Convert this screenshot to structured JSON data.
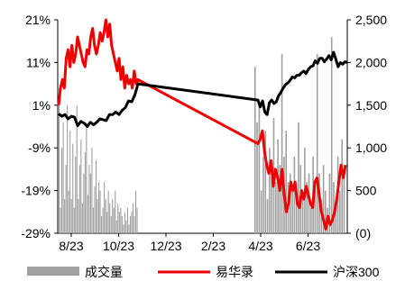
{
  "chart_data": {
    "type": "bar+line",
    "title": "",
    "x_ticks": [
      "8/23",
      "10/23",
      "12/23",
      "2/23",
      "4/23",
      "6/23"
    ],
    "left_axis": {
      "ticks": [
        "21%",
        "11%",
        "1%",
        "-9%",
        "-19%",
        "-29%"
      ],
      "range": [
        -29,
        21
      ],
      "unit": "%"
    },
    "right_axis": {
      "ticks": [
        "2,500",
        "2,000",
        "1,500",
        "1,000",
        "500",
        "(0)"
      ],
      "range": [
        0,
        2500
      ]
    },
    "legend_position": "bottom",
    "series": [
      {
        "name": "成交量",
        "kind": "bar",
        "axis": "right",
        "color": "#a0a0a0",
        "values": [
          1700,
          300,
          1000,
          1300,
          400,
          800,
          1500,
          500,
          1200,
          400,
          1050,
          300,
          900,
          1500,
          400,
          800,
          1100,
          350,
          700,
          950,
          1300,
          450,
          800,
          700,
          1000,
          300,
          550,
          850,
          400,
          600,
          500,
          200,
          300,
          600,
          400,
          250,
          500,
          350,
          200,
          400,
          300,
          500,
          150,
          350,
          250,
          300,
          200,
          100,
          250,
          150,
          300,
          100,
          200,
          250,
          350,
          200,
          500,
          300,
          1950,
          1300,
          1500,
          500,
          900,
          1200,
          400,
          1000,
          700,
          1350,
          600,
          1100,
          800,
          2100,
          900,
          1200,
          600,
          700,
          500,
          900,
          400,
          1300,
          800,
          500,
          1000,
          600,
          700,
          300,
          900,
          500,
          2100,
          700,
          400,
          800,
          500,
          300,
          700,
          2300,
          600,
          400,
          900,
          500,
          1100,
          800
        ]
      },
      {
        "name": "易华录",
        "kind": "line",
        "axis": "left",
        "color": "#ee0000",
        "values": [
          1,
          5,
          7,
          5,
          12,
          14,
          10,
          15,
          11,
          13,
          17,
          15,
          13,
          11,
          10,
          14,
          13,
          17,
          19,
          15,
          13,
          15,
          18,
          16,
          18,
          21,
          17,
          20,
          15,
          13,
          11,
          9,
          12,
          7,
          10,
          5,
          8,
          6,
          7,
          5,
          9,
          6,
          7,
          -8,
          -7,
          -5,
          -10,
          -13,
          -15,
          -12,
          -18,
          -14,
          -16,
          -19,
          -14,
          -20,
          -24,
          -22,
          -17,
          -19,
          -17,
          -22,
          -23,
          -19,
          -21,
          -18,
          -20,
          -22,
          -23,
          -17,
          -16,
          -20,
          -24,
          -26,
          -28,
          -25,
          -27,
          -26,
          -24,
          -21,
          -17,
          -13,
          -16,
          -13
        ]
      },
      {
        "name": "沪深300",
        "kind": "line",
        "axis": "right",
        "color": "#000000",
        "values": [
          1400,
          1370,
          1390,
          1340,
          1370,
          1360,
          1260,
          1310,
          1290,
          1250,
          1300,
          1270,
          1300,
          1340,
          1330,
          1320,
          1390,
          1390,
          1420,
          1390,
          1440,
          1470,
          1550,
          1540,
          1620,
          1750,
          1560,
          1480,
          1550,
          1420,
          1390,
          1530,
          1560,
          1520,
          1540,
          1610,
          1650,
          1700,
          1740,
          1760,
          1790,
          1830,
          1820,
          1850,
          1850,
          1880,
          1900,
          1870,
          1920,
          1950,
          1960,
          2020,
          1990,
          2050,
          2050,
          2010,
          2040,
          2080,
          2030,
          2120,
          2040,
          1950,
          2000,
          1980,
          2010,
          2000
        ]
      }
    ]
  }
}
